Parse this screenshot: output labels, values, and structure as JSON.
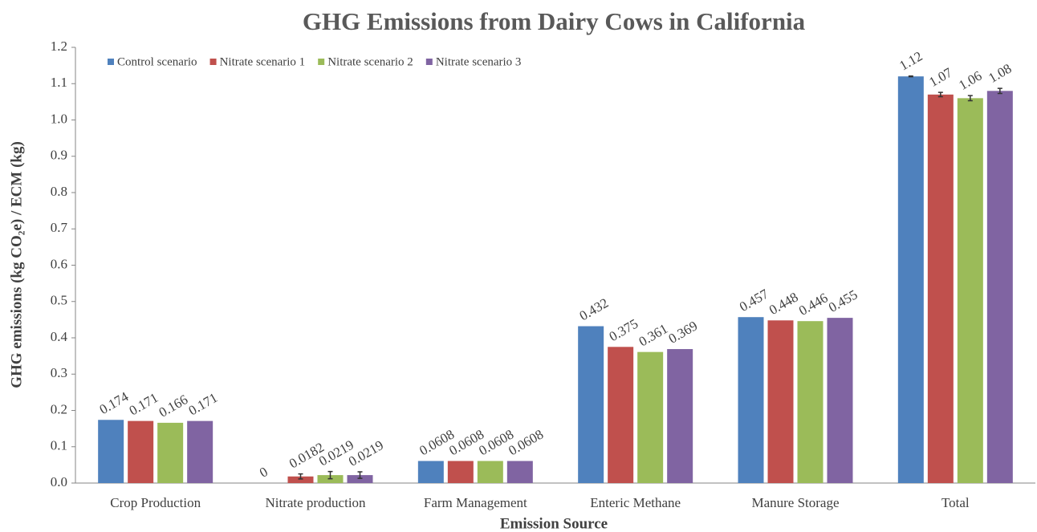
{
  "chart_data": {
    "type": "bar",
    "title": "GHG Emissions from Dairy Cows in California",
    "x_label": "Emission Source",
    "y_label": "GHG emissions (kg CO₂e) / ECM (kg)",
    "categories": [
      "Crop Production",
      "Nitrate production",
      "Farm Management",
      "Enteric Methane",
      "Manure Storage",
      "Total"
    ],
    "series": [
      {
        "name": "Control scenario",
        "color": "#4f81bd",
        "values": [
          0.174,
          0,
          0.0608,
          0.432,
          0.457,
          1.12
        ],
        "errors": [
          null,
          null,
          null,
          null,
          null,
          0.001
        ]
      },
      {
        "name": "Nitrate scenario 1",
        "color": "#c0504d",
        "values": [
          0.171,
          0.0182,
          0.0608,
          0.375,
          0.448,
          1.07
        ],
        "errors": [
          null,
          0.007,
          null,
          null,
          null,
          0.006
        ]
      },
      {
        "name": "Nitrate scenario 2",
        "color": "#9bbb59",
        "values": [
          0.166,
          0.0219,
          0.0608,
          0.361,
          0.446,
          1.06
        ],
        "errors": [
          null,
          0.01,
          null,
          null,
          null,
          0.007
        ]
      },
      {
        "name": "Nitrate scenario 3",
        "color": "#8064a2",
        "values": [
          0.171,
          0.0219,
          0.0608,
          0.369,
          0.455,
          1.08
        ],
        "errors": [
          null,
          0.009,
          null,
          null,
          null,
          0.007
        ]
      }
    ],
    "ylim": [
      0,
      1.2
    ],
    "yticks": [
      {
        "value": 0,
        "label": "0.0"
      },
      0.1,
      0.2,
      0.3,
      0.4,
      0.5,
      0.6,
      0.7,
      0.8,
      0.9,
      {
        "value": 1,
        "label": "1.0"
      },
      1.1,
      1.2
    ],
    "legend": "top-left"
  }
}
